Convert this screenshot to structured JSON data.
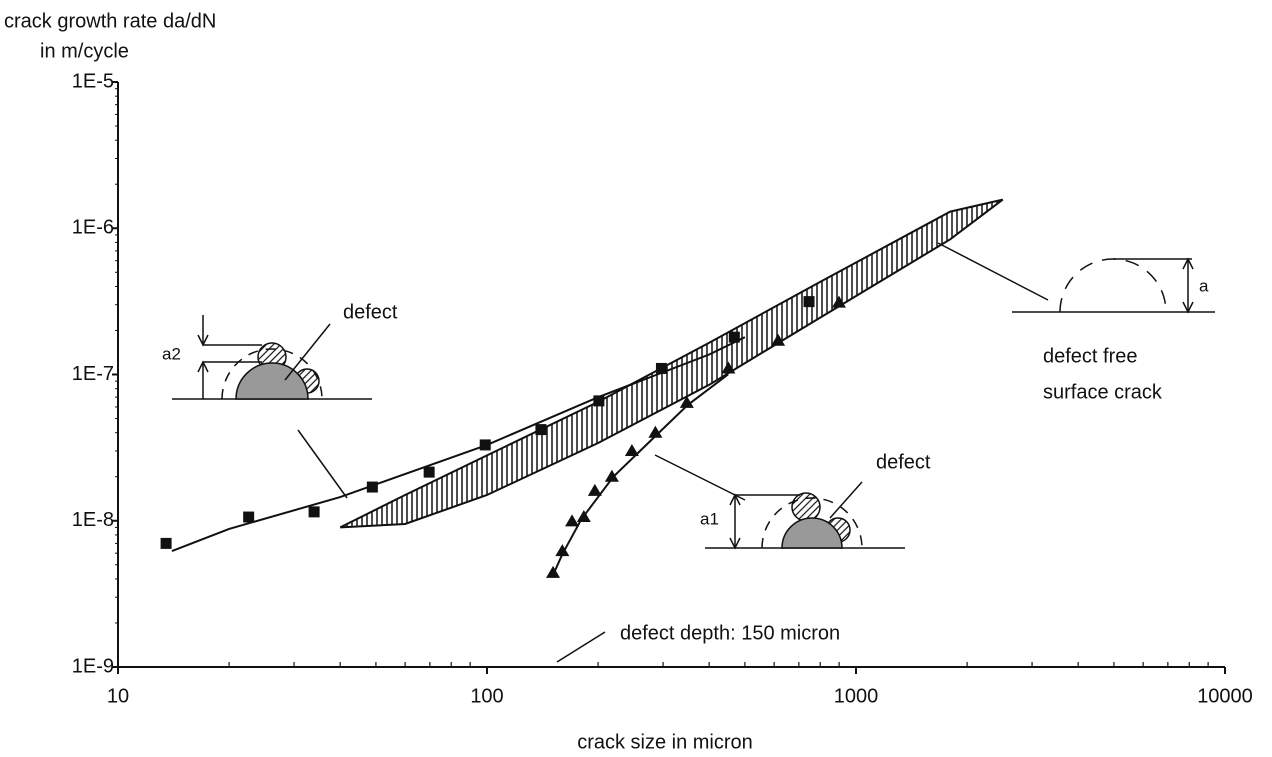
{
  "chart_data": {
    "type": "scatter",
    "xlog": true,
    "ylog": true,
    "xlim": [
      10,
      10000
    ],
    "ylim": [
      1e-09,
      1e-05
    ],
    "xticks": [
      10,
      100,
      1000,
      10000
    ],
    "yticks": [
      {
        "value": 1e-09,
        "label": "1E-9"
      },
      {
        "value": 1e-08,
        "label": "1E-8"
      },
      {
        "value": 1e-07,
        "label": "1E-7"
      },
      {
        "value": 1e-06,
        "label": "1E-6"
      },
      {
        "value": 1e-05,
        "label": "1E-5"
      }
    ],
    "xlabel": "crack size in micron",
    "ylabel": [
      "crack growth rate  da/dN",
      "in m/cycle"
    ],
    "series": [
      {
        "marker": "square",
        "color": "#111111",
        "x": [
          13.5,
          22.6,
          34,
          48.9,
          69.7,
          98.9,
          140,
          201,
          297,
          468,
          746
        ],
        "values": [
          7e-09,
          1.06e-08,
          1.15e-08,
          1.7e-08,
          2.15e-08,
          3.3e-08,
          4.2e-08,
          6.6e-08,
          1.1e-07,
          1.8e-07,
          3.15e-07
        ]
      },
      {
        "marker": "triangle",
        "color": "#111111",
        "x": [
          151,
          160,
          170,
          183,
          196,
          218,
          247,
          286,
          348,
          451,
          615,
          899
        ],
        "values": [
          4.4e-09,
          6.2e-09,
          9.9e-09,
          1.06e-08,
          1.6e-08,
          2e-08,
          3e-08,
          4e-08,
          6.4e-08,
          1.1e-07,
          1.7e-07,
          3.1e-07
        ]
      }
    ],
    "curves": [
      {
        "color": "#111111",
        "x": [
          14,
          20,
          40,
          100,
          200,
          400,
          500
        ],
        "values": [
          6.2e-09,
          8.8e-09,
          1.45e-08,
          3.3e-08,
          7e-08,
          1.37e-07,
          1.8e-07
        ]
      },
      {
        "color": "#111111",
        "x": [
          150,
          160,
          180,
          220,
          280,
          350,
          450
        ],
        "values": [
          4.1e-09,
          5.9e-09,
          1.02e-08,
          2e-08,
          3.6e-08,
          6.2e-08,
          1e-07
        ]
      }
    ],
    "band": {
      "x": [
        40,
        60,
        100,
        200,
        400,
        800,
        1800,
        2500
      ],
      "upper": [
        9e-09,
        1.5e-08,
        2.8e-08,
        6.5e-08,
        1.65e-07,
        4.3e-07,
        1.3e-06,
        1.57e-06
      ],
      "lower": [
        9e-09,
        9.5e-09,
        1.5e-08,
        3.4e-08,
        8.5e-08,
        2.45e-07,
        8.4e-07,
        1.57e-06
      ]
    },
    "annotations": [
      "defect",
      "a2",
      "defect",
      "a1",
      "a",
      "defect free",
      "surface crack",
      "defect depth: 150 micron"
    ]
  }
}
